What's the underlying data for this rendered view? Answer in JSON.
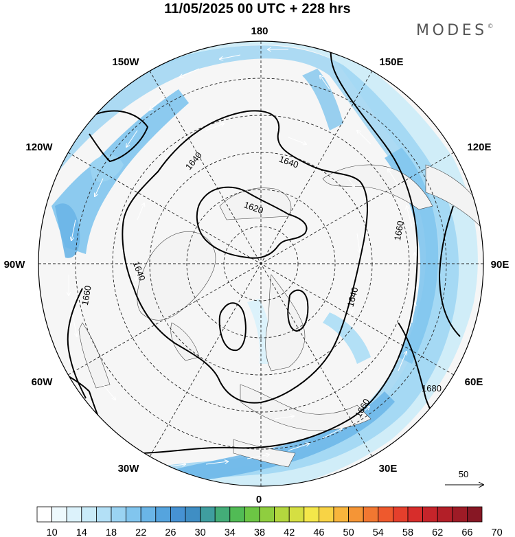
{
  "title": "11/05/2025  00 UTC  + 228 hrs",
  "brand": {
    "name": "MODES",
    "mark": "©"
  },
  "longitude_labels": [
    {
      "id": "lon-180",
      "text": "180"
    },
    {
      "id": "lon-150e",
      "text": "150E"
    },
    {
      "id": "lon-120e",
      "text": "120E"
    },
    {
      "id": "lon-90e",
      "text": "90E"
    },
    {
      "id": "lon-60e",
      "text": "60E"
    },
    {
      "id": "lon-30e",
      "text": "30E"
    },
    {
      "id": "lon-0",
      "text": "0"
    },
    {
      "id": "lon-30w",
      "text": "30W"
    },
    {
      "id": "lon-60w",
      "text": "60W"
    },
    {
      "id": "lon-90w",
      "text": "90W"
    },
    {
      "id": "lon-120w",
      "text": "120W"
    },
    {
      "id": "lon-150w",
      "text": "150W"
    }
  ],
  "contour_labels": [
    "1620",
    "1640",
    "1640",
    "1640",
    "1640",
    "1660",
    "1660",
    "1660",
    "1680"
  ],
  "vector_reference": {
    "value": "50"
  },
  "colorbar": {
    "colors": [
      "#ffffff",
      "#eef9fd",
      "#dcf2fb",
      "#c9ebf8",
      "#b3e0f6",
      "#9ad3f2",
      "#81c5ee",
      "#6ab5e7",
      "#55a4de",
      "#4692d3",
      "#3f8ec4",
      "#3f9e9f",
      "#43ad78",
      "#51bb55",
      "#6cc644",
      "#8fce3f",
      "#b3d73e",
      "#d5df42",
      "#f4e74a",
      "#f8d345",
      "#f8b53c",
      "#f59536",
      "#f27731",
      "#ee592d",
      "#e53f2c",
      "#d72d2b",
      "#c6242a",
      "#b31f28",
      "#9e1b26",
      "#871724"
    ],
    "labels": [
      "10",
      "14",
      "18",
      "22",
      "26",
      "30",
      "34",
      "38",
      "42",
      "46",
      "50",
      "54",
      "58",
      "62",
      "66",
      "70"
    ]
  }
}
